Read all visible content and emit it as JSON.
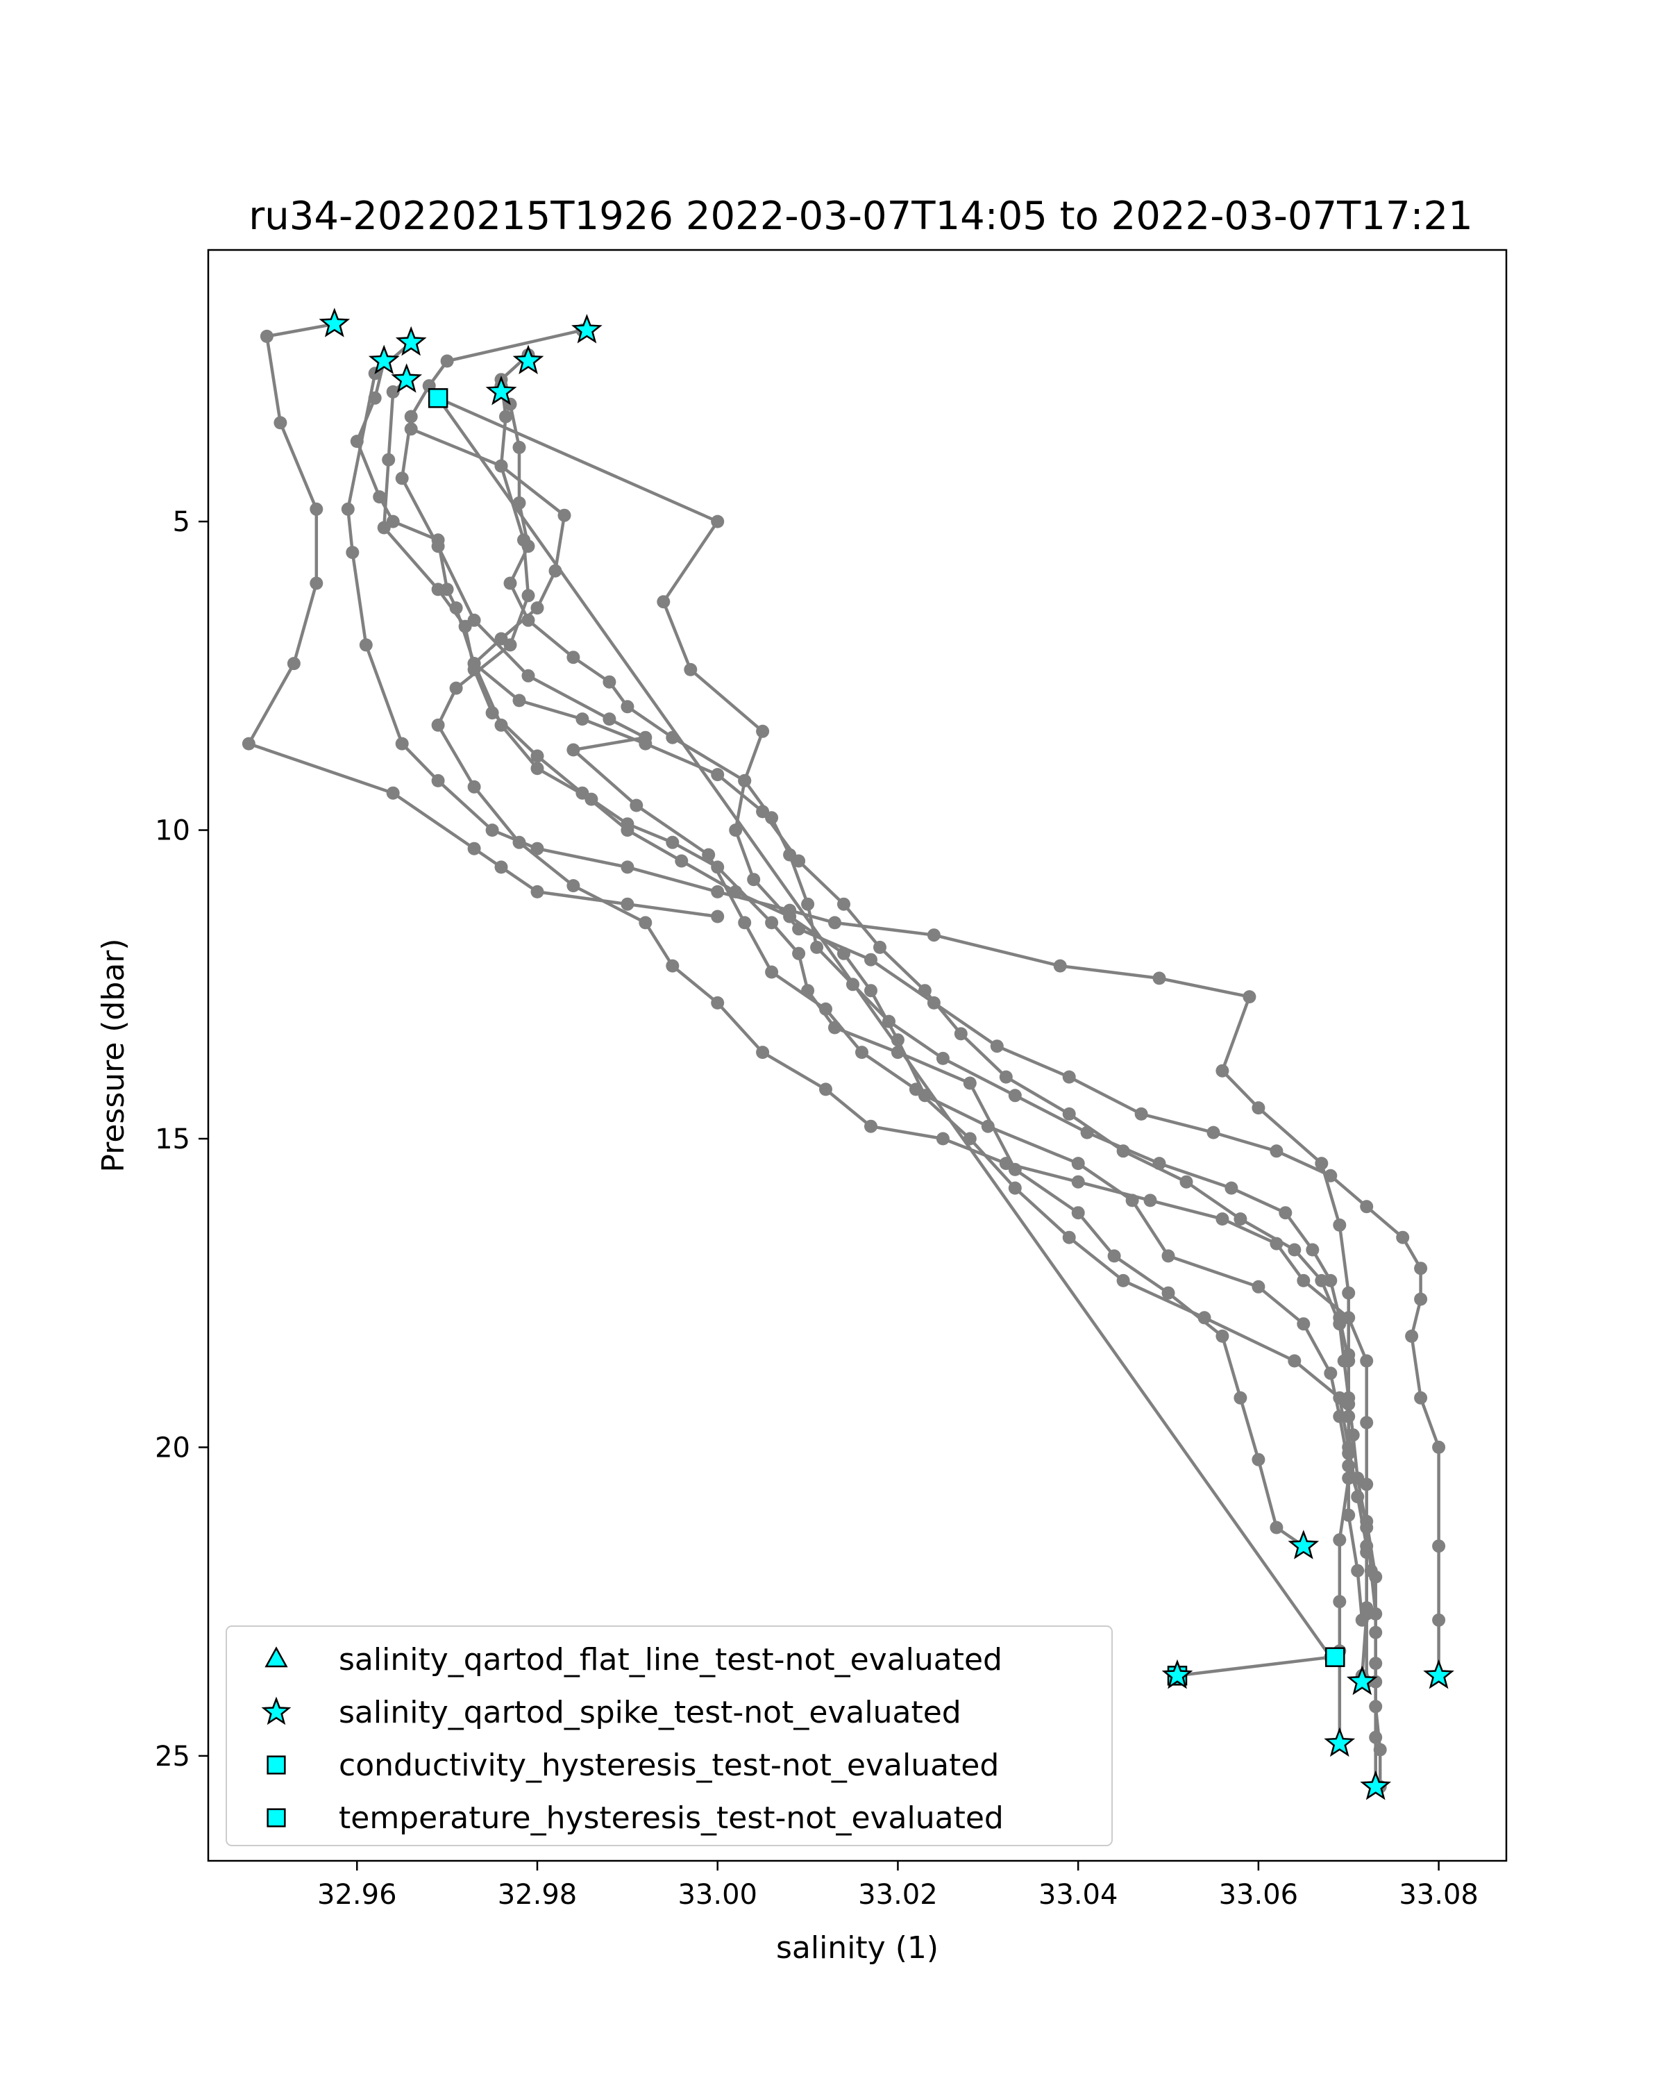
{
  "chart_data": {
    "type": "scatter",
    "title": "ru34-20220215T1926 2022-03-07T14:05 to 2022-03-07T17:21",
    "xlabel": "salinity (1)",
    "ylabel": "Pressure (dbar)",
    "xlim": [
      32.9435,
      33.0875
    ],
    "ylim": [
      26.7,
      0.6
    ],
    "y_inverted": true,
    "grid": false,
    "legend_position": "lower-left",
    "xticks": [
      "32.96",
      "32.98",
      "33.00",
      "33.02",
      "33.04",
      "33.06",
      "33.08"
    ],
    "xtick_values": [
      32.96,
      32.98,
      33.0,
      33.02,
      33.04,
      33.06,
      33.08
    ],
    "yticks": [
      "5",
      "10",
      "15",
      "20",
      "25"
    ],
    "ytick_values": [
      5,
      10,
      15,
      20,
      25
    ],
    "colors": {
      "profile_line": "#808080",
      "flag_marker_fill": "#00ffff",
      "flag_marker_edge": "#000000"
    },
    "profiles": [
      [
        [
          32.9575,
          1.8
        ],
        [
          32.95,
          2.0
        ],
        [
          32.9515,
          3.4
        ],
        [
          32.9555,
          4.8
        ],
        [
          32.9555,
          6.0
        ],
        [
          32.953,
          7.3
        ],
        [
          32.948,
          8.6
        ],
        [
          32.964,
          9.4
        ],
        [
          32.973,
          10.3
        ],
        [
          32.976,
          10.6
        ],
        [
          32.98,
          11.0
        ],
        [
          32.99,
          11.2
        ],
        [
          33.0,
          11.4
        ]
      ],
      [
        [
          32.966,
          2.1
        ],
        [
          32.962,
          2.6
        ],
        [
          32.959,
          4.8
        ],
        [
          32.9595,
          5.5
        ],
        [
          32.961,
          7.0
        ],
        [
          32.965,
          8.6
        ],
        [
          32.969,
          9.2
        ],
        [
          32.975,
          10.0
        ],
        [
          32.98,
          10.3
        ],
        [
          32.99,
          10.6
        ],
        [
          33.0,
          11.0
        ],
        [
          33.008,
          11.3
        ],
        [
          33.013,
          11.5
        ],
        [
          33.024,
          11.7
        ],
        [
          33.038,
          12.2
        ],
        [
          33.049,
          12.4
        ],
        [
          33.059,
          12.7
        ],
        [
          33.056,
          13.9
        ],
        [
          33.06,
          14.5
        ],
        [
          33.067,
          15.4
        ],
        [
          33.069,
          16.4
        ],
        [
          33.07,
          17.5
        ],
        [
          33.07,
          18.5
        ],
        [
          33.07,
          19.5
        ],
        [
          33.07,
          20.5
        ],
        [
          33.069,
          21.5
        ],
        [
          33.069,
          22.5
        ],
        [
          33.069,
          23.3
        ],
        [
          33.069,
          24.8
        ]
      ],
      [
        [
          32.963,
          2.4
        ],
        [
          32.962,
          3.0
        ],
        [
          32.96,
          3.7
        ],
        [
          32.9625,
          4.6
        ],
        [
          32.964,
          5.0
        ],
        [
          32.969,
          5.3
        ],
        [
          32.97,
          6.1
        ],
        [
          32.971,
          6.4
        ],
        [
          32.973,
          7.3
        ],
        [
          32.976,
          8.3
        ],
        [
          32.98,
          9.0
        ],
        [
          32.986,
          9.5
        ],
        [
          32.99,
          9.9
        ],
        [
          32.995,
          10.2
        ],
        [
          33.0,
          10.6
        ],
        [
          33.006,
          11.5
        ],
        [
          33.009,
          12.0
        ],
        [
          33.01,
          12.6
        ],
        [
          33.013,
          13.2
        ],
        [
          33.02,
          13.6
        ],
        [
          33.028,
          14.1
        ],
        [
          33.033,
          15.5
        ],
        [
          33.04,
          16.2
        ],
        [
          33.044,
          16.9
        ],
        [
          33.05,
          17.5
        ],
        [
          33.056,
          18.2
        ],
        [
          33.058,
          19.2
        ],
        [
          33.06,
          20.2
        ],
        [
          33.062,
          21.3
        ],
        [
          33.065,
          21.6
        ]
      ],
      [
        [
          32.9655,
          2.7
        ],
        [
          32.964,
          2.9
        ],
        [
          32.9635,
          4.0
        ],
        [
          32.963,
          5.1
        ],
        [
          32.969,
          6.1
        ],
        [
          32.972,
          6.7
        ],
        [
          32.973,
          7.4
        ],
        [
          32.975,
          8.1
        ],
        [
          32.98,
          8.8
        ],
        [
          32.985,
          9.4
        ],
        [
          32.99,
          10.0
        ],
        [
          32.996,
          10.5
        ],
        [
          33.002,
          11.0
        ],
        [
          33.008,
          11.4
        ],
        [
          33.014,
          12.0
        ],
        [
          33.017,
          12.6
        ],
        [
          33.02,
          13.4
        ],
        [
          33.023,
          14.3
        ],
        [
          33.03,
          14.8
        ],
        [
          33.04,
          15.4
        ],
        [
          33.046,
          16.0
        ],
        [
          33.05,
          16.9
        ],
        [
          33.06,
          17.4
        ],
        [
          33.065,
          18.0
        ],
        [
          33.068,
          18.8
        ],
        [
          33.069,
          19.5
        ],
        [
          33.07,
          20.3
        ],
        [
          33.072,
          21.2
        ],
        [
          33.073,
          22.1
        ],
        [
          33.073,
          23.0
        ],
        [
          33.073,
          23.8
        ],
        [
          33.073,
          24.7
        ],
        [
          33.073,
          25.5
        ]
      ],
      [
        [
          32.985,
          1.9
        ],
        [
          32.97,
          2.4
        ],
        [
          32.968,
          2.8
        ],
        [
          32.966,
          3.3
        ],
        [
          32.965,
          4.3
        ],
        [
          32.969,
          5.4
        ],
        [
          32.973,
          6.6
        ],
        [
          32.979,
          7.5
        ],
        [
          32.988,
          8.2
        ],
        [
          32.992,
          8.5
        ],
        [
          32.984,
          8.7
        ],
        [
          32.991,
          9.6
        ],
        [
          32.999,
          10.4
        ],
        [
          33.003,
          11.5
        ],
        [
          33.006,
          12.3
        ],
        [
          33.012,
          12.9
        ],
        [
          33.016,
          13.6
        ],
        [
          33.022,
          14.2
        ],
        [
          33.028,
          15.0
        ],
        [
          33.033,
          15.8
        ],
        [
          33.039,
          16.6
        ],
        [
          33.045,
          17.3
        ],
        [
          33.054,
          17.9
        ],
        [
          33.064,
          18.6
        ],
        [
          33.069,
          19.2
        ],
        [
          33.07,
          20.0
        ],
        [
          33.071,
          20.8
        ],
        [
          33.072,
          21.6
        ],
        [
          33.072,
          22.6
        ],
        [
          33.072,
          23.8
        ]
      ],
      [
        [
          32.979,
          2.3
        ],
        [
          32.976,
          2.7
        ],
        [
          32.9765,
          3.3
        ],
        [
          32.976,
          4.1
        ],
        [
          32.9785,
          5.3
        ],
        [
          32.979,
          6.2
        ],
        [
          32.977,
          7.0
        ],
        [
          32.971,
          7.7
        ],
        [
          32.969,
          8.3
        ],
        [
          32.973,
          9.3
        ],
        [
          32.978,
          10.2
        ],
        [
          32.984,
          10.9
        ],
        [
          32.992,
          11.5
        ],
        [
          32.995,
          12.2
        ],
        [
          33.0,
          12.8
        ],
        [
          33.005,
          13.6
        ],
        [
          33.012,
          14.2
        ],
        [
          33.017,
          14.8
        ],
        [
          33.025,
          15.0
        ],
        [
          33.032,
          15.4
        ],
        [
          33.04,
          15.7
        ],
        [
          33.048,
          16.0
        ],
        [
          33.056,
          16.3
        ],
        [
          33.062,
          16.7
        ],
        [
          33.065,
          17.3
        ],
        [
          33.07,
          17.9
        ],
        [
          33.072,
          18.6
        ],
        [
          33.072,
          19.6
        ],
        [
          33.072,
          20.6
        ],
        [
          33.072,
          21.7
        ],
        [
          33.072,
          22.7
        ],
        [
          33.0715,
          23.7
        ]
      ],
      [
        [
          32.976,
          2.8
        ],
        [
          32.977,
          3.1
        ],
        [
          32.978,
          3.8
        ],
        [
          32.978,
          4.7
        ],
        [
          32.979,
          5.4
        ],
        [
          32.977,
          6.0
        ],
        [
          32.979,
          6.6
        ],
        [
          32.984,
          7.2
        ],
        [
          32.988,
          7.6
        ],
        [
          32.99,
          8.0
        ],
        [
          32.995,
          8.5
        ],
        [
          33.003,
          9.2
        ],
        [
          33.006,
          9.8
        ],
        [
          33.008,
          10.4
        ],
        [
          33.01,
          11.2
        ],
        [
          33.011,
          11.9
        ],
        [
          33.015,
          12.5
        ],
        [
          33.019,
          13.1
        ],
        [
          33.025,
          13.7
        ],
        [
          33.033,
          14.3
        ],
        [
          33.041,
          14.9
        ],
        [
          33.049,
          15.4
        ],
        [
          33.057,
          15.8
        ],
        [
          33.063,
          16.2
        ],
        [
          33.066,
          16.8
        ],
        [
          33.068,
          17.3
        ],
        [
          33.069,
          17.9
        ],
        [
          33.07,
          18.6
        ],
        [
          33.07,
          19.3
        ],
        [
          33.07,
          20.1
        ],
        [
          33.07,
          21.1
        ],
        [
          33.071,
          22.0
        ],
        [
          33.0715,
          22.8
        ]
      ],
      [
        [
          32.966,
          3.5
        ],
        [
          32.976,
          4.1
        ],
        [
          32.983,
          4.9
        ],
        [
          32.982,
          5.8
        ],
        [
          32.98,
          6.4
        ],
        [
          32.976,
          6.9
        ],
        [
          32.973,
          7.3
        ],
        [
          32.978,
          7.9
        ],
        [
          32.985,
          8.2
        ],
        [
          32.992,
          8.6
        ],
        [
          33.0,
          9.1
        ],
        [
          33.005,
          9.7
        ],
        [
          33.009,
          10.5
        ],
        [
          33.014,
          11.2
        ],
        [
          33.018,
          11.9
        ],
        [
          33.023,
          12.6
        ],
        [
          33.027,
          13.3
        ],
        [
          33.032,
          14.0
        ],
        [
          33.039,
          14.6
        ],
        [
          33.045,
          15.2
        ],
        [
          33.052,
          15.7
        ],
        [
          33.058,
          16.3
        ],
        [
          33.064,
          16.8
        ],
        [
          33.067,
          17.3
        ],
        [
          33.069,
          18.0
        ],
        [
          33.0695,
          18.6
        ],
        [
          33.07,
          19.2
        ],
        [
          33.0705,
          19.8
        ],
        [
          33.071,
          20.5
        ],
        [
          33.072,
          21.3
        ],
        [
          33.0725,
          22.0
        ],
        [
          33.073,
          22.7
        ],
        [
          33.073,
          23.5
        ],
        [
          33.073,
          24.2
        ],
        [
          33.0735,
          24.9
        ],
        [
          33.0735,
          25.5
        ]
      ],
      [
        [
          32.969,
          3.0
        ],
        [
          33.0,
          5.0
        ],
        [
          32.994,
          6.3
        ],
        [
          32.997,
          7.4
        ],
        [
          33.005,
          8.4
        ],
        [
          33.003,
          9.2
        ],
        [
          33.002,
          10.0
        ],
        [
          33.004,
          10.8
        ],
        [
          33.009,
          11.6
        ],
        [
          33.017,
          12.1
        ],
        [
          33.024,
          12.8
        ],
        [
          33.031,
          13.5
        ],
        [
          33.039,
          14.0
        ],
        [
          33.047,
          14.6
        ],
        [
          33.055,
          14.9
        ],
        [
          33.062,
          15.2
        ],
        [
          33.068,
          15.6
        ],
        [
          33.072,
          16.1
        ],
        [
          33.076,
          16.6
        ],
        [
          33.078,
          17.1
        ],
        [
          33.078,
          17.6
        ],
        [
          33.077,
          18.2
        ],
        [
          33.078,
          19.2
        ],
        [
          33.08,
          20.0
        ],
        [
          33.08,
          21.6
        ],
        [
          33.08,
          22.8
        ],
        [
          33.08,
          23.7
        ]
      ],
      [
        [
          32.969,
          3.0
        ],
        [
          33.068,
          23.4
        ],
        [
          33.051,
          23.7
        ]
      ]
    ],
    "flag_markers": [
      {
        "type": "star",
        "x": 32.9575,
        "y": 1.8
      },
      {
        "type": "star",
        "x": 32.9855,
        "y": 1.9
      },
      {
        "type": "star",
        "x": 32.966,
        "y": 2.1
      },
      {
        "type": "star",
        "x": 32.963,
        "y": 2.4
      },
      {
        "type": "star",
        "x": 32.979,
        "y": 2.4
      },
      {
        "type": "star",
        "x": 32.9655,
        "y": 2.7
      },
      {
        "type": "star",
        "x": 32.976,
        "y": 2.9
      },
      {
        "type": "square",
        "x": 32.969,
        "y": 3.0
      },
      {
        "type": "star",
        "x": 33.065,
        "y": 21.6
      },
      {
        "type": "square",
        "x": 33.0685,
        "y": 23.4
      },
      {
        "type": "square",
        "x": 33.051,
        "y": 23.7
      },
      {
        "type": "star",
        "x": 33.051,
        "y": 23.7
      },
      {
        "type": "star",
        "x": 33.08,
        "y": 23.7
      },
      {
        "type": "star",
        "x": 33.0715,
        "y": 23.8
      },
      {
        "type": "star",
        "x": 33.069,
        "y": 24.8
      },
      {
        "type": "star",
        "x": 33.073,
        "y": 25.5
      }
    ],
    "legend": [
      {
        "label": "salinity_qartod_flat_line_test-not_evaluated",
        "marker": "triangle"
      },
      {
        "label": "salinity_qartod_spike_test-not_evaluated",
        "marker": "star"
      },
      {
        "label": "conductivity_hysteresis_test-not_evaluated",
        "marker": "square"
      },
      {
        "label": "temperature_hysteresis_test-not_evaluated",
        "marker": "square"
      }
    ]
  }
}
